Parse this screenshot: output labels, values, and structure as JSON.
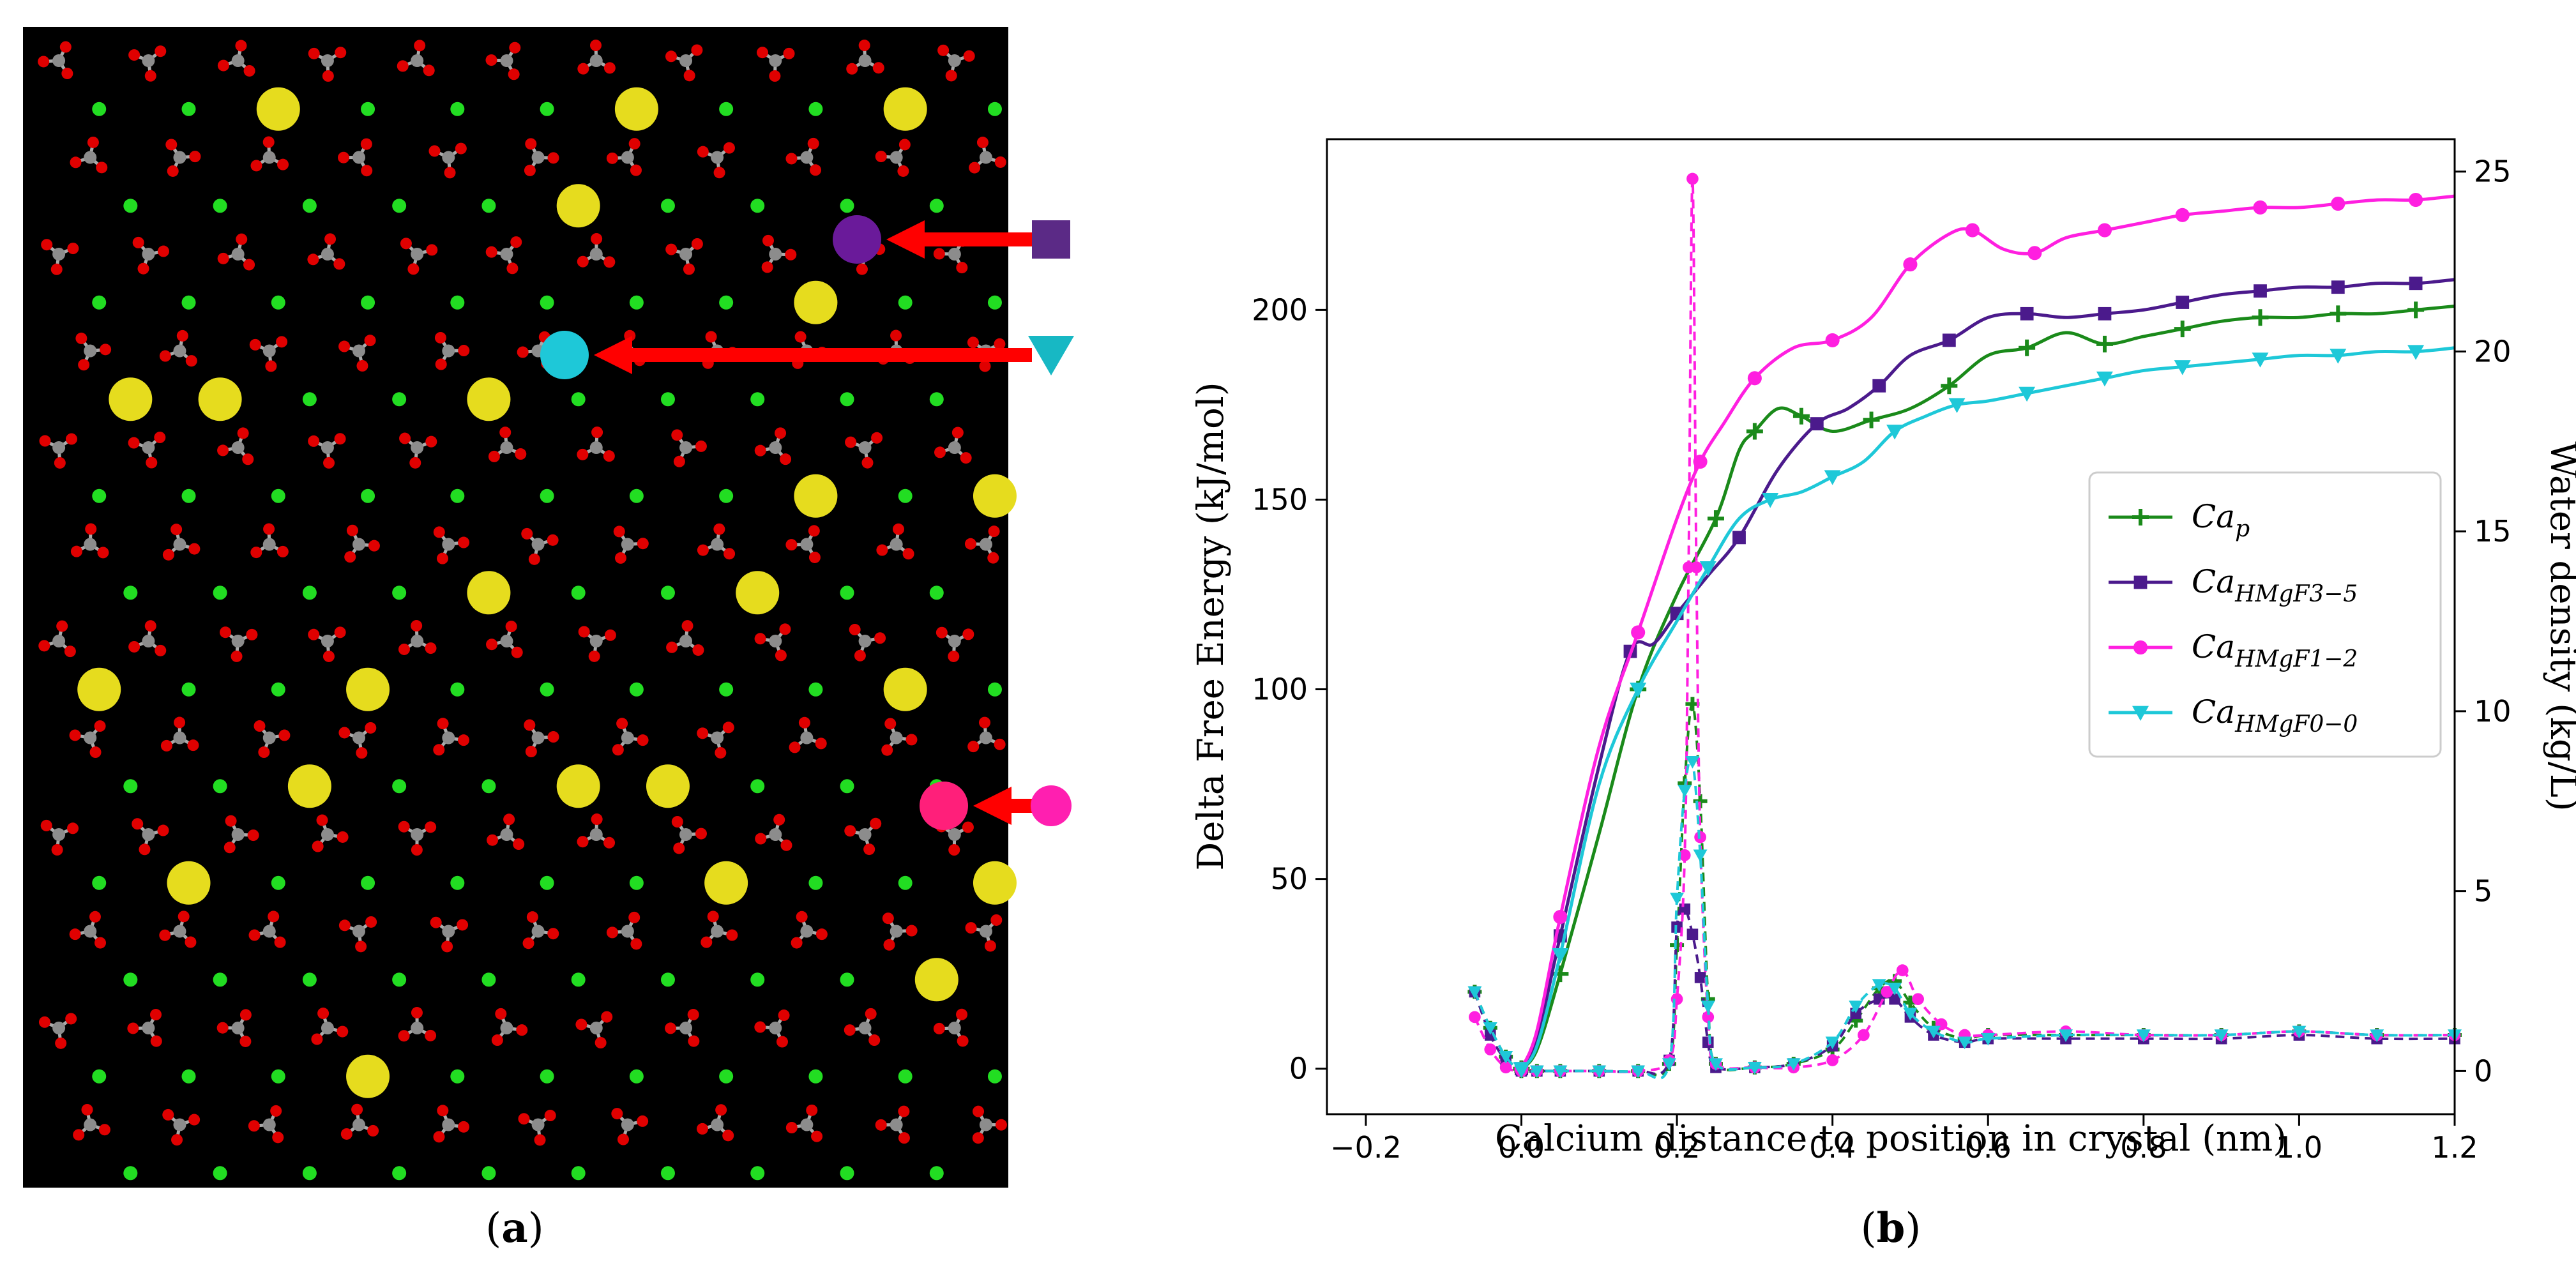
{
  "panels": {
    "a": {
      "label_open": "(",
      "label_letter": "a",
      "label_close": ")"
    },
    "b": {
      "label_open": "(",
      "label_letter": "b",
      "label_close": ")"
    }
  },
  "crystal_view": {
    "background": "#000000",
    "atom_colors": {
      "oxygen": "#e00000",
      "carbon": "#8c8c8c",
      "magnesium": "#22dd22",
      "calcium": "#e6dc1e",
      "marked_square": "#6a1a9a",
      "marked_triangle": "#1ec8d8",
      "marked_circle": "#ff1f7a"
    },
    "markers": [
      {
        "shape": "square",
        "color": "#5b2a86"
      },
      {
        "shape": "triangle-down",
        "color": "#17b8c4"
      },
      {
        "shape": "circle",
        "color": "#ff1fb0"
      }
    ],
    "arrow_color": "#ff0000"
  },
  "chart_data": {
    "type": "line",
    "xlabel": "Calcium distance to position in crystal (nm)",
    "ylabel": "Delta Free Energy (kJ/mol)",
    "y2label": "Water density (kg/L)",
    "xlim": [
      -0.25,
      1.2
    ],
    "ylim": [
      -12,
      245
    ],
    "y2lim": [
      -1.2,
      25.9
    ],
    "xticks": [
      "−0.2",
      "0.0",
      "0.2",
      "0.4",
      "0.6",
      "0.8",
      "1.0",
      "1.2"
    ],
    "xtick_values": [
      -0.2,
      0.0,
      0.2,
      0.4,
      0.6,
      0.8,
      1.0,
      1.2
    ],
    "yticks": [
      "0",
      "50",
      "100",
      "150",
      "200"
    ],
    "ytick_values": [
      0,
      50,
      100,
      150,
      200
    ],
    "y2ticks": [
      "0",
      "5",
      "10",
      "15",
      "20",
      "25"
    ],
    "y2tick_values": [
      0,
      5,
      10,
      15,
      20,
      25
    ],
    "legend_position": "center-right",
    "grid": false,
    "series": [
      {
        "name": "Ca_p",
        "base": "Ca",
        "sub": "p",
        "color": "#1a8a1a",
        "marker": "plus",
        "energy_x": [
          0.0,
          0.02,
          0.05,
          0.1,
          0.15,
          0.2,
          0.25,
          0.28,
          0.3,
          0.33,
          0.36,
          0.4,
          0.45,
          0.5,
          0.55,
          0.6,
          0.65,
          0.7,
          0.75,
          0.8,
          0.85,
          0.9,
          0.95,
          1.0,
          1.05,
          1.1,
          1.15,
          1.2
        ],
        "energy_y": [
          0,
          5,
          25,
          62,
          100,
          125,
          145,
          163,
          168,
          174,
          172,
          168,
          171,
          174,
          180,
          188,
          190,
          194,
          191,
          193,
          195,
          197,
          198,
          198,
          199,
          199,
          200,
          201
        ],
        "density_x": [
          -0.06,
          -0.04,
          -0.02,
          0.0,
          0.02,
          0.05,
          0.1,
          0.15,
          0.19,
          0.2,
          0.21,
          0.22,
          0.23,
          0.24,
          0.25,
          0.3,
          0.35,
          0.4,
          0.43,
          0.46,
          0.48,
          0.5,
          0.53,
          0.57,
          0.6,
          0.7,
          0.8,
          0.9,
          1.0,
          1.1,
          1.2
        ],
        "density_y": [
          2.2,
          1.2,
          0.4,
          0.0,
          0.0,
          0.0,
          0.0,
          0.0,
          0.2,
          3.5,
          8.0,
          10.2,
          7.5,
          2.0,
          0.2,
          0.1,
          0.2,
          0.6,
          1.4,
          2.3,
          2.5,
          1.9,
          1.2,
          0.9,
          1.0,
          1.0,
          1.0,
          1.0,
          1.1,
          1.0,
          1.0
        ]
      },
      {
        "name": "Ca_HMgF3-5",
        "base": "Ca",
        "sub": "HMgF3−5",
        "color": "#4b1a8c",
        "marker": "square",
        "energy_x": [
          0.0,
          0.02,
          0.05,
          0.1,
          0.14,
          0.17,
          0.2,
          0.24,
          0.28,
          0.33,
          0.38,
          0.42,
          0.46,
          0.5,
          0.55,
          0.6,
          0.65,
          0.7,
          0.75,
          0.8,
          0.85,
          0.9,
          0.95,
          1.0,
          1.05,
          1.1,
          1.15,
          1.2
        ],
        "energy_y": [
          0,
          8,
          35,
          80,
          110,
          112,
          120,
          130,
          140,
          158,
          170,
          174,
          180,
          188,
          192,
          198,
          199,
          198,
          199,
          200,
          202,
          204,
          205,
          206,
          206,
          207,
          207,
          208
        ],
        "density_x": [
          -0.06,
          -0.04,
          -0.02,
          0.0,
          0.02,
          0.05,
          0.1,
          0.15,
          0.19,
          0.2,
          0.21,
          0.22,
          0.23,
          0.24,
          0.25,
          0.3,
          0.35,
          0.4,
          0.43,
          0.46,
          0.48,
          0.5,
          0.53,
          0.57,
          0.6,
          0.7,
          0.8,
          0.9,
          1.0,
          1.1,
          1.2
        ],
        "density_y": [
          2.2,
          1.0,
          0.3,
          0.0,
          0.0,
          0.0,
          0.0,
          0.0,
          0.3,
          4.0,
          4.5,
          3.8,
          2.6,
          0.8,
          0.1,
          0.1,
          0.2,
          0.7,
          1.6,
          2.0,
          2.0,
          1.5,
          1.0,
          0.8,
          0.9,
          0.9,
          0.9,
          0.9,
          1.0,
          0.9,
          0.9
        ]
      },
      {
        "name": "Ca_HMgF1-2",
        "base": "Ca",
        "sub": "HMgF1−2",
        "color": "#ff1fe0",
        "marker": "circle",
        "energy_x": [
          0.0,
          0.02,
          0.05,
          0.1,
          0.15,
          0.2,
          0.23,
          0.26,
          0.3,
          0.35,
          0.4,
          0.45,
          0.5,
          0.55,
          0.58,
          0.62,
          0.66,
          0.7,
          0.75,
          0.8,
          0.85,
          0.9,
          0.95,
          1.0,
          1.05,
          1.1,
          1.15,
          1.2
        ],
        "energy_y": [
          0,
          10,
          40,
          85,
          115,
          145,
          160,
          170,
          182,
          190,
          192,
          198,
          212,
          220,
          221,
          216,
          215,
          219,
          221,
          223,
          225,
          226,
          227,
          227,
          228,
          229,
          229,
          230
        ],
        "density_x": [
          -0.06,
          -0.04,
          -0.02,
          0.0,
          0.02,
          0.05,
          0.1,
          0.15,
          0.19,
          0.2,
          0.21,
          0.215,
          0.22,
          0.225,
          0.23,
          0.24,
          0.25,
          0.3,
          0.35,
          0.4,
          0.44,
          0.47,
          0.49,
          0.51,
          0.54,
          0.57,
          0.6,
          0.7,
          0.8,
          0.9,
          1.0,
          1.1,
          1.2
        ],
        "density_y": [
          1.5,
          0.6,
          0.1,
          0.0,
          0.0,
          0.0,
          0.0,
          0.0,
          0.3,
          2.0,
          6.0,
          14.0,
          24.8,
          14.0,
          6.5,
          1.5,
          0.2,
          0.1,
          0.1,
          0.3,
          1.0,
          2.2,
          2.8,
          2.0,
          1.3,
          1.0,
          1.0,
          1.1,
          1.0,
          1.0,
          1.1,
          1.0,
          1.0
        ]
      },
      {
        "name": "Ca_HMgF0-0",
        "base": "Ca",
        "sub": "HMgF0−0",
        "color": "#1ec8d8",
        "marker": "triangle-down",
        "energy_x": [
          0.0,
          0.02,
          0.05,
          0.1,
          0.15,
          0.2,
          0.24,
          0.28,
          0.32,
          0.36,
          0.4,
          0.44,
          0.48,
          0.52,
          0.56,
          0.6,
          0.65,
          0.7,
          0.75,
          0.8,
          0.85,
          0.9,
          0.95,
          1.0,
          1.05,
          1.1,
          1.15,
          1.2
        ],
        "energy_y": [
          0,
          6,
          30,
          75,
          100,
          118,
          132,
          145,
          150,
          152,
          156,
          160,
          168,
          172,
          175,
          176,
          178,
          180,
          182,
          184,
          185,
          186,
          187,
          188,
          188,
          189,
          189,
          190
        ],
        "density_x": [
          -0.06,
          -0.04,
          -0.02,
          0.0,
          0.02,
          0.05,
          0.1,
          0.15,
          0.19,
          0.2,
          0.21,
          0.22,
          0.23,
          0.24,
          0.25,
          0.3,
          0.35,
          0.4,
          0.43,
          0.46,
          0.48,
          0.5,
          0.53,
          0.57,
          0.6,
          0.7,
          0.8,
          0.9,
          1.0,
          1.1,
          1.2
        ],
        "density_y": [
          2.2,
          1.2,
          0.4,
          0.0,
          0.0,
          0.0,
          0.0,
          0.0,
          0.2,
          4.8,
          7.8,
          8.6,
          6.0,
          1.8,
          0.2,
          0.1,
          0.2,
          0.8,
          1.8,
          2.4,
          2.3,
          1.6,
          1.1,
          0.8,
          0.9,
          1.0,
          1.0,
          1.0,
          1.1,
          1.0,
          1.0
        ]
      }
    ]
  }
}
